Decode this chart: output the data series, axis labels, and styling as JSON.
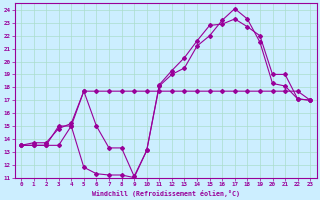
{
  "xlabel": "Windchill (Refroidissement éolien,°C)",
  "background_color": "#cceeff",
  "grid_color": "#aaddcc",
  "line_color": "#990099",
  "xlim": [
    -0.5,
    23.5
  ],
  "ylim": [
    11,
    24.5
  ],
  "xticks": [
    0,
    1,
    2,
    3,
    4,
    5,
    6,
    7,
    8,
    9,
    10,
    11,
    12,
    13,
    14,
    15,
    16,
    17,
    18,
    19,
    20,
    21,
    22,
    23
  ],
  "yticks": [
    11,
    12,
    13,
    14,
    15,
    16,
    17,
    18,
    19,
    20,
    21,
    22,
    23,
    24
  ],
  "series1_x": [
    0,
    1,
    2,
    3,
    4,
    5,
    6,
    7,
    8,
    9,
    10,
    11,
    12,
    13,
    14,
    15,
    16,
    17,
    18,
    19,
    20,
    21,
    22,
    23
  ],
  "series1_y": [
    13.5,
    13.7,
    13.7,
    14.8,
    15.2,
    17.7,
    15.0,
    13.3,
    13.3,
    11.1,
    13.1,
    18.1,
    19.0,
    19.5,
    21.2,
    22.0,
    23.2,
    24.1,
    23.3,
    21.5,
    18.3,
    18.1,
    17.1,
    17.0
  ],
  "series2_x": [
    0,
    1,
    2,
    3,
    4,
    5,
    6,
    7,
    8,
    9,
    10,
    11,
    12,
    13,
    14,
    15,
    16,
    17,
    18,
    19,
    20,
    21,
    22,
    23
  ],
  "series2_y": [
    13.5,
    13.5,
    13.5,
    13.5,
    15.0,
    11.8,
    11.3,
    11.2,
    11.2,
    11.0,
    13.1,
    18.2,
    19.3,
    20.3,
    21.6,
    22.8,
    22.9,
    23.3,
    22.7,
    22.0,
    19.0,
    19.0,
    17.1,
    17.0
  ],
  "series3_x": [
    0,
    1,
    2,
    3,
    4,
    5,
    6,
    7,
    8,
    9,
    10,
    11,
    12,
    13,
    14,
    15,
    16,
    17,
    18,
    19,
    20,
    21,
    22,
    23
  ],
  "series3_y": [
    13.5,
    13.5,
    13.5,
    15.0,
    15.0,
    17.7,
    17.7,
    17.7,
    17.7,
    17.7,
    17.7,
    17.7,
    17.7,
    17.7,
    17.7,
    17.7,
    17.7,
    17.7,
    17.7,
    17.7,
    17.7,
    17.7,
    17.7,
    17.0
  ]
}
